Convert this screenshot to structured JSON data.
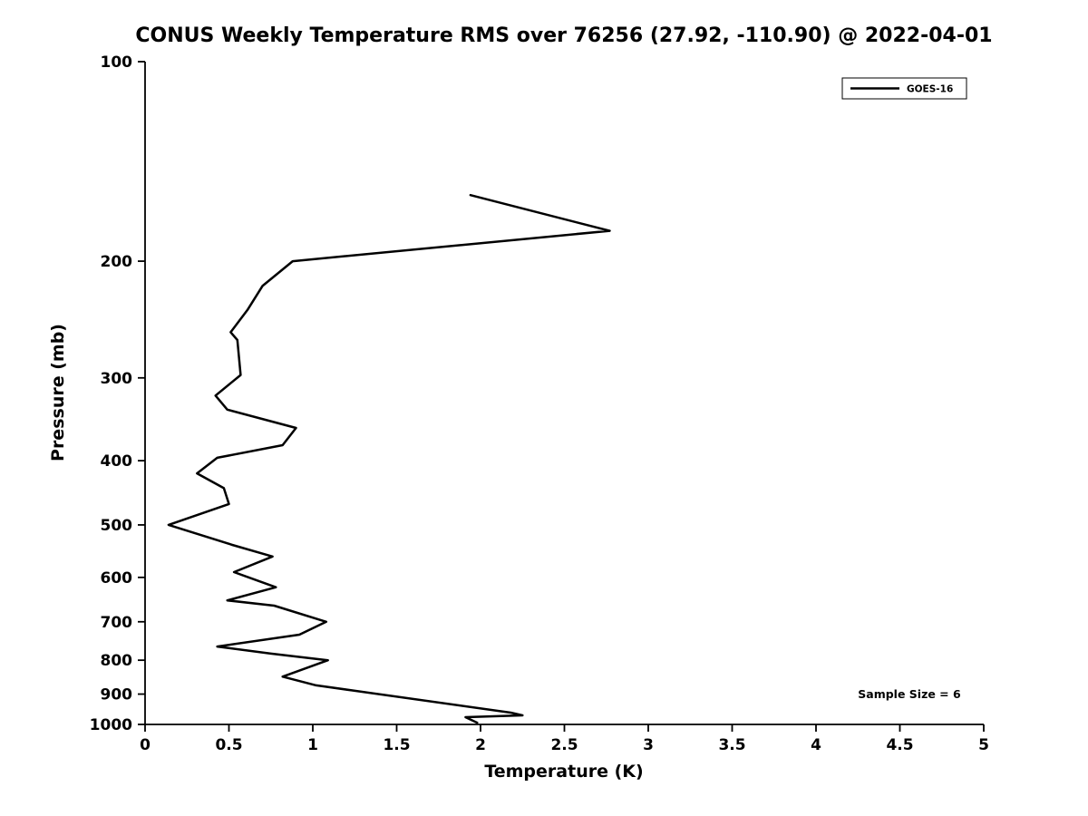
{
  "chart_data": {
    "type": "line",
    "title": "CONUS Weekly Temperature RMS over 76256 (27.92, -110.90) @ 2022-04-01",
    "xlabel": "Temperature (K)",
    "ylabel": "Pressure (mb)",
    "xlim": [
      0,
      5
    ],
    "ylim": [
      100,
      1000
    ],
    "y_scale": "log",
    "y_inverted": true,
    "grid": false,
    "x_ticks": [
      0,
      0.5,
      1,
      1.5,
      2,
      2.5,
      3,
      3.5,
      4,
      4.5,
      5
    ],
    "x_tick_labels": [
      "0",
      "0.5",
      "1",
      "1.5",
      "2",
      "2.5",
      "3",
      "3.5",
      "4",
      "4.5",
      "5"
    ],
    "y_ticks": [
      100,
      200,
      300,
      400,
      500,
      600,
      700,
      800,
      900,
      1000
    ],
    "y_tick_labels": [
      "100",
      "200",
      "300",
      "400",
      "500",
      "600",
      "700",
      "800",
      "900",
      "1000"
    ],
    "legend": {
      "position": "top-right",
      "entries": [
        {
          "label": "GOES-16",
          "color": "#000000",
          "line_width": 2.5
        }
      ]
    },
    "annotation": "Sample Size = 6",
    "line_color": "#000000",
    "series": [
      {
        "name": "GOES-16",
        "color": "#000000",
        "pressure_mb": [
          159,
          180,
          200,
          218,
          237,
          256,
          263,
          297,
          319,
          335,
          357,
          379,
          396,
          418,
          440,
          465,
          500,
          536,
          558,
          589,
          621,
          650,
          662,
          700,
          732,
          763,
          782,
          800,
          847,
          873,
          960,
          969,
          975,
          994
        ],
        "rms_k": [
          1.94,
          2.77,
          0.88,
          0.7,
          0.61,
          0.51,
          0.55,
          0.57,
          0.42,
          0.49,
          0.9,
          0.82,
          0.43,
          0.31,
          0.47,
          0.5,
          0.14,
          0.52,
          0.76,
          0.53,
          0.78,
          0.49,
          0.77,
          1.08,
          0.92,
          0.43,
          0.75,
          1.09,
          0.82,
          1.02,
          2.18,
          2.25,
          1.91,
          1.98
        ]
      }
    ]
  }
}
